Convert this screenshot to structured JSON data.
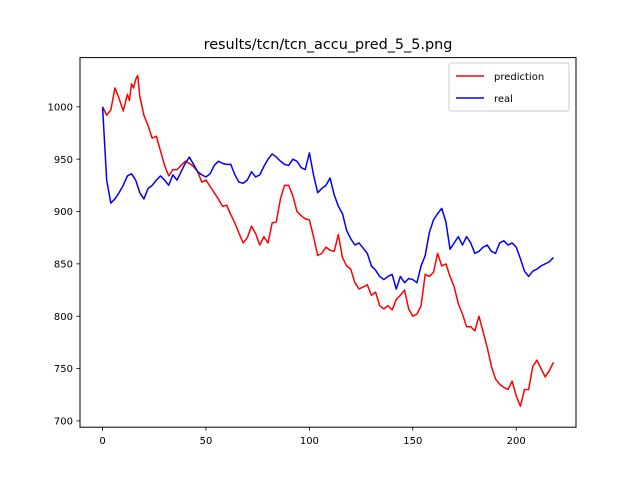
{
  "chart_data": {
    "type": "line",
    "title": "results/tcn/tcn_accu_pred_5_5.png",
    "xlabel": "",
    "ylabel": "",
    "xlim": [
      -10.9,
      228.9
    ],
    "ylim": [
      694,
      1047
    ],
    "xticks": [
      0,
      50,
      100,
      150,
      200
    ],
    "yticks": [
      700,
      750,
      800,
      850,
      900,
      950,
      1000
    ],
    "grid": false,
    "legend_position": "top-right",
    "series": [
      {
        "name": "prediction",
        "color": "#ff0000",
        "x": [
          0,
          2,
          4,
          6,
          8,
          10,
          12,
          13,
          14,
          15,
          16,
          17,
          18,
          20,
          22,
          24,
          26,
          28,
          30,
          32,
          34,
          36,
          38,
          40,
          42,
          44,
          46,
          48,
          50,
          52,
          54,
          56,
          58,
          60,
          62,
          64,
          66,
          68,
          70,
          72,
          74,
          76,
          78,
          80,
          82,
          84,
          86,
          88,
          90,
          92,
          94,
          96,
          98,
          100,
          102,
          104,
          106,
          108,
          110,
          112,
          114,
          116,
          118,
          120,
          122,
          124,
          126,
          128,
          130,
          132,
          134,
          136,
          138,
          140,
          142,
          144,
          146,
          148,
          150,
          152,
          154,
          156,
          158,
          160,
          162,
          164,
          166,
          168,
          170,
          172,
          174,
          176,
          178,
          180,
          182,
          184,
          186,
          188,
          190,
          192,
          194,
          196,
          198,
          200,
          202,
          204,
          206,
          208,
          210,
          212,
          214,
          216,
          218
        ],
        "y": [
          1000,
          992,
          997,
          1018,
          1008,
          996,
          1012,
          1006,
          1022,
          1018,
          1026,
          1030,
          1010,
          992,
          982,
          970,
          972,
          958,
          944,
          934,
          940,
          940,
          944,
          948,
          946,
          943,
          938,
          928,
          930,
          924,
          918,
          912,
          905,
          906,
          897,
          889,
          879,
          870,
          875,
          886,
          879,
          868,
          876,
          870,
          889,
          890,
          912,
          925,
          925,
          915,
          900,
          896,
          893,
          892,
          876,
          858,
          860,
          866,
          863,
          862,
          878,
          856,
          848,
          845,
          832,
          826,
          828,
          830,
          820,
          823,
          810,
          807,
          810,
          806,
          816,
          820,
          825,
          807,
          800,
          802,
          810,
          840,
          838,
          842,
          860,
          848,
          850,
          838,
          828,
          812,
          802,
          790,
          790,
          786,
          800,
          785,
          770,
          752,
          740,
          735,
          732,
          730,
          738,
          724,
          714,
          730,
          730,
          752,
          758,
          750,
          742,
          748,
          756
        ]
      },
      {
        "name": "real",
        "color": "#0000ff",
        "x": [
          0,
          2,
          4,
          6,
          8,
          10,
          12,
          14,
          16,
          18,
          20,
          22,
          24,
          26,
          28,
          30,
          32,
          34,
          36,
          38,
          40,
          42,
          44,
          46,
          48,
          50,
          52,
          54,
          56,
          58,
          60,
          62,
          64,
          66,
          68,
          70,
          72,
          74,
          76,
          78,
          80,
          82,
          84,
          86,
          88,
          90,
          92,
          94,
          96,
          98,
          100,
          102,
          104,
          106,
          108,
          110,
          112,
          114,
          116,
          118,
          120,
          122,
          124,
          126,
          128,
          130,
          132,
          134,
          136,
          138,
          140,
          142,
          144,
          146,
          148,
          150,
          152,
          154,
          156,
          158,
          160,
          162,
          164,
          166,
          168,
          170,
          172,
          174,
          176,
          178,
          180,
          182,
          184,
          186,
          188,
          190,
          192,
          194,
          196,
          198,
          200,
          202,
          204,
          206,
          208,
          210,
          212,
          214,
          216,
          218
        ],
        "y": [
          1000,
          930,
          908,
          912,
          918,
          925,
          934,
          936,
          930,
          918,
          912,
          922,
          925,
          930,
          934,
          930,
          925,
          935,
          930,
          938,
          946,
          952,
          945,
          938,
          935,
          933,
          936,
          944,
          948,
          946,
          945,
          945,
          935,
          928,
          927,
          930,
          938,
          933,
          935,
          943,
          950,
          955,
          952,
          948,
          945,
          944,
          950,
          948,
          942,
          940,
          956,
          935,
          918,
          922,
          925,
          932,
          916,
          905,
          898,
          882,
          874,
          868,
          870,
          865,
          860,
          848,
          844,
          838,
          835,
          838,
          840,
          826,
          838,
          832,
          836,
          835,
          832,
          848,
          858,
          880,
          892,
          898,
          903,
          890,
          864,
          870,
          876,
          868,
          876,
          870,
          860,
          862,
          866,
          868,
          862,
          860,
          870,
          872,
          868,
          870,
          866,
          855,
          843,
          838,
          843,
          845,
          848,
          850,
          852,
          856
        ]
      }
    ]
  }
}
